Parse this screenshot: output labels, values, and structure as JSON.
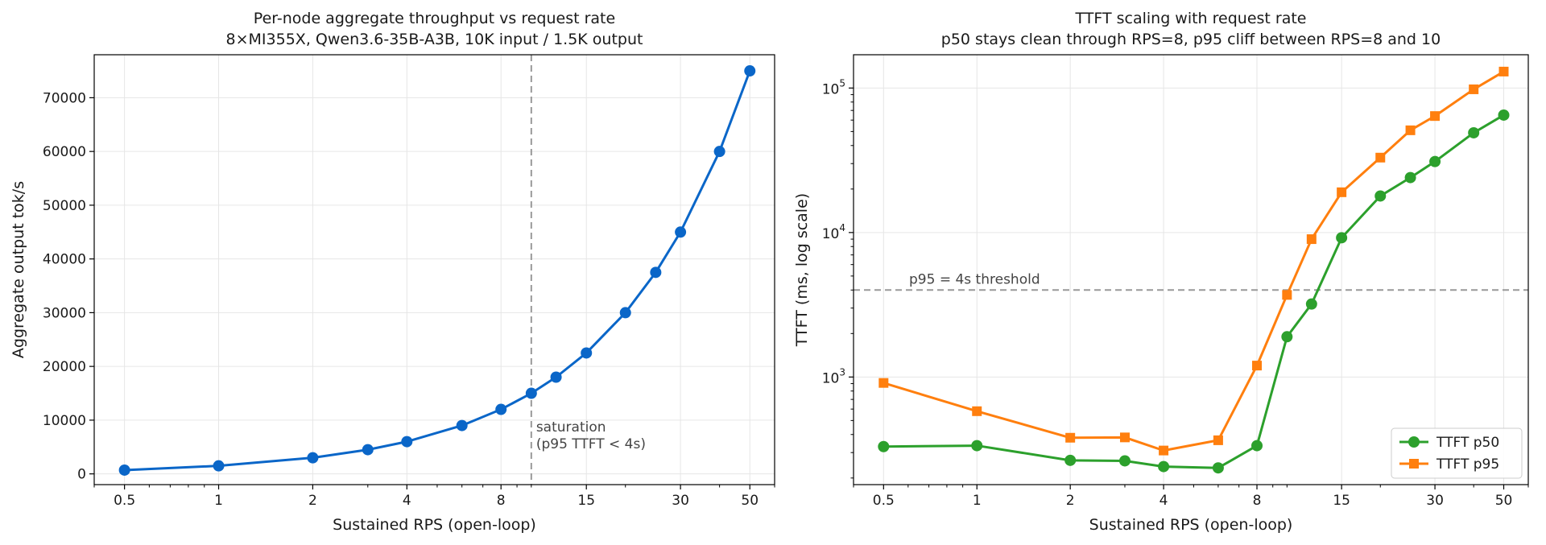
{
  "chart_data": [
    {
      "type": "line",
      "title": "Per-node aggregate throughput vs request rate",
      "subtitle": "8×MI355X, Qwen3.6-35B-A3B, 10K input / 1.5K output",
      "xlabel": "Sustained RPS (open-loop)",
      "ylabel": "Aggregate output tok/s",
      "xscale": "log",
      "xlim": [
        0.4,
        60
      ],
      "ylim": [
        -2000,
        78000
      ],
      "xticks": [
        0.5,
        1,
        2,
        4,
        8,
        15,
        30,
        50
      ],
      "xtick_labels": [
        "0.5",
        "1",
        "2",
        "4",
        "8",
        "15",
        "30",
        "50"
      ],
      "yticks": [
        0,
        10000,
        20000,
        30000,
        40000,
        50000,
        60000,
        70000
      ],
      "ytick_labels": [
        "0",
        "10000",
        "20000",
        "30000",
        "40000",
        "50000",
        "60000",
        "70000"
      ],
      "grid": true,
      "series": [
        {
          "color": "#0a66c8",
          "marker": "circle",
          "x": [
            0.5,
            1,
            2,
            3,
            4,
            6,
            8,
            10,
            12,
            15,
            20,
            25,
            30,
            40,
            50
          ],
          "y": [
            700,
            1500,
            3000,
            4500,
            6000,
            9000,
            12000,
            15000,
            18000,
            22500,
            30000,
            37500,
            45000,
            60000,
            75000
          ]
        }
      ],
      "annotations": [
        {
          "kind": "vline",
          "x": 10,
          "color": "#999999",
          "text_lines": [
            "saturation",
            "(p95 TTFT < 4s)"
          ]
        }
      ]
    },
    {
      "type": "line",
      "title": "TTFT scaling with request rate",
      "subtitle": "p50 stays clean through RPS=8, p95 cliff between RPS=8 and 10",
      "xlabel": "Sustained RPS (open-loop)",
      "ylabel": "TTFT (ms, log scale)",
      "xscale": "log",
      "yscale": "log",
      "xlim": [
        0.4,
        60
      ],
      "ylim": [
        180,
        170000
      ],
      "xticks": [
        0.5,
        1,
        2,
        4,
        8,
        15,
        30,
        50
      ],
      "xtick_labels": [
        "0.5",
        "1",
        "2",
        "4",
        "8",
        "15",
        "30",
        "50"
      ],
      "yticks": [
        1000,
        10000,
        100000
      ],
      "ytick_labels": [
        {
          "base": "10",
          "exp": "3"
        },
        {
          "base": "10",
          "exp": "4"
        },
        {
          "base": "10",
          "exp": "5"
        }
      ],
      "grid": true,
      "legend_position": "lower-right",
      "series": [
        {
          "name": "TTFT p50",
          "color": "#2ca02c",
          "marker": "circle",
          "x": [
            0.5,
            1,
            2,
            3,
            4,
            6,
            8,
            10,
            12,
            15,
            20,
            25,
            30,
            40,
            50
          ],
          "y": [
            330,
            335,
            265,
            263,
            240,
            235,
            335,
            1900,
            3200,
            9200,
            17900,
            24000,
            31000,
            49000,
            65000
          ]
        },
        {
          "name": "TTFT p95",
          "color": "#ff7f0e",
          "marker": "square",
          "x": [
            0.5,
            1,
            2,
            3,
            4,
            6,
            8,
            10,
            12,
            15,
            20,
            25,
            30,
            40,
            50
          ],
          "y": [
            910,
            580,
            380,
            382,
            310,
            365,
            1200,
            3700,
            9000,
            19000,
            33000,
            51000,
            64000,
            98000,
            130000
          ]
        }
      ],
      "annotations": [
        {
          "kind": "hline",
          "y": 4000,
          "color": "#999999",
          "text": "p95 = 4s threshold"
        }
      ]
    }
  ]
}
